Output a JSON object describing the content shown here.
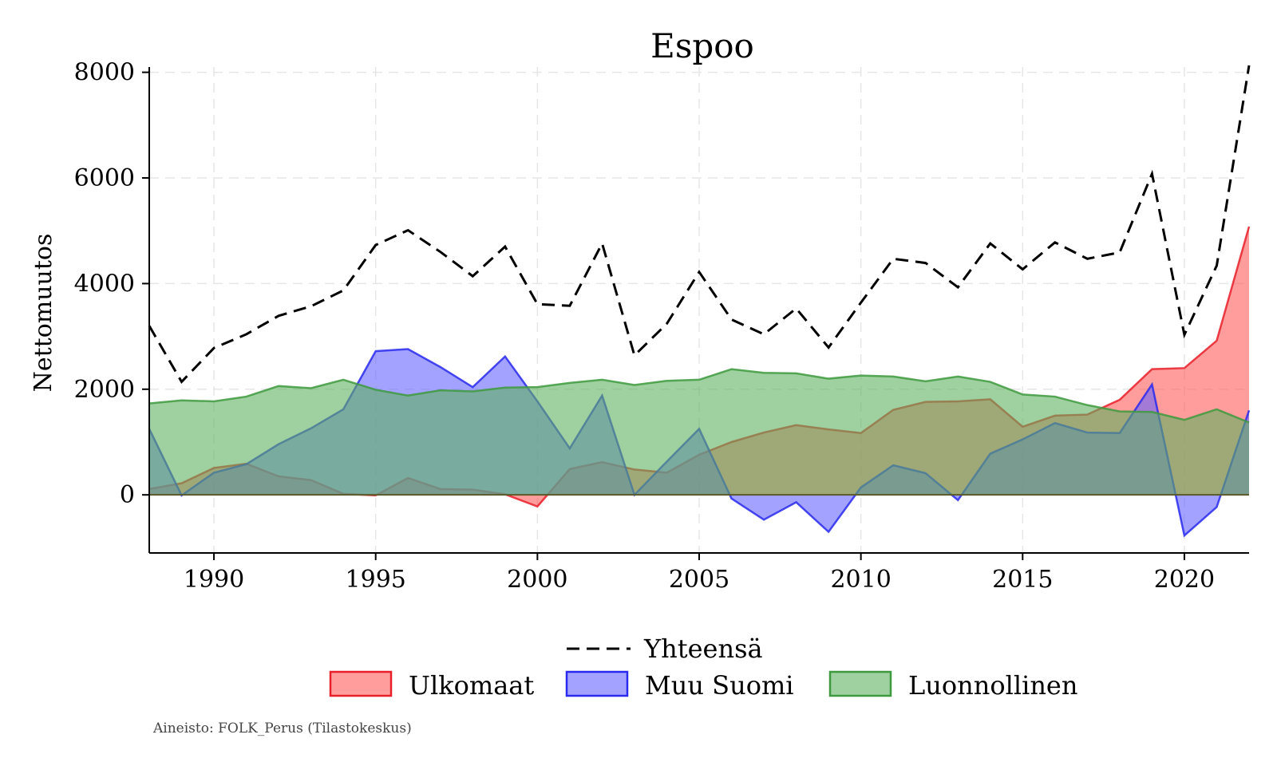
{
  "chart_data": {
    "type": "area",
    "title": "Espoo",
    "xlabel": "",
    "ylabel": "Nettomuutos",
    "xlim": [
      1988,
      2022
    ],
    "ylim": [
      -1100,
      8100
    ],
    "x_ticks": [
      1990,
      1995,
      2000,
      2005,
      2010,
      2015,
      2020
    ],
    "y_ticks": [
      0,
      2000,
      4000,
      6000,
      8000
    ],
    "x": [
      1988,
      1989,
      1990,
      1991,
      1992,
      1993,
      1994,
      1995,
      1996,
      1997,
      1998,
      1999,
      2000,
      2001,
      2002,
      2003,
      2004,
      2005,
      2006,
      2007,
      2008,
      2009,
      2010,
      2011,
      2012,
      2013,
      2014,
      2015,
      2016,
      2017,
      2018,
      2019,
      2020,
      2021,
      2022
    ],
    "series": [
      {
        "name": "Ulkomaat",
        "kind": "area",
        "color": "#ff5a5a",
        "edge": "#e8202a",
        "values": [
          110,
          220,
          510,
          590,
          350,
          280,
          20,
          -10,
          320,
          110,
          100,
          10,
          -220,
          490,
          620,
          480,
          420,
          760,
          1000,
          1180,
          1320,
          1240,
          1170,
          1610,
          1760,
          1770,
          1810,
          1290,
          1500,
          1520,
          1800,
          2380,
          2400,
          2920,
          5080
        ]
      },
      {
        "name": "Muu Suomi",
        "kind": "area",
        "color": "#6666ff",
        "edge": "#2a2aee",
        "values": [
          1250,
          -10,
          420,
          580,
          960,
          1260,
          1620,
          2720,
          2760,
          2420,
          2040,
          2620,
          1770,
          880,
          1880,
          0,
          630,
          1250,
          -70,
          -470,
          -140,
          -700,
          140,
          560,
          410,
          -100,
          780,
          1050,
          1360,
          1180,
          1170,
          2090,
          -770,
          -230,
          1600
        ]
      },
      {
        "name": "Luonnollinen",
        "kind": "area",
        "color": "#5fb05f",
        "edge": "#3e9a3e",
        "values": [
          1730,
          1790,
          1770,
          1860,
          2060,
          2020,
          2180,
          1990,
          1880,
          1980,
          1960,
          2030,
          2040,
          2120,
          2180,
          2080,
          2160,
          2180,
          2380,
          2310,
          2300,
          2200,
          2260,
          2240,
          2150,
          2240,
          2140,
          1900,
          1860,
          1700,
          1580,
          1570,
          1420,
          1620,
          1370
        ]
      },
      {
        "name": "Yhteensä",
        "kind": "line",
        "style": "dashed",
        "color": "#000000",
        "values": [
          3200,
          2140,
          2780,
          3040,
          3390,
          3570,
          3870,
          4730,
          5010,
          4600,
          4140,
          4700,
          3610,
          3580,
          4760,
          2640,
          3240,
          4220,
          3320,
          3040,
          3530,
          2790,
          3640,
          4470,
          4390,
          3930,
          4760,
          4270,
          4780,
          4470,
          4590,
          6080,
          3030,
          4340,
          8130
        ]
      }
    ],
    "legend": {
      "position": "bottom-center",
      "entries": [
        "Yhteensä",
        "Ulkomaat",
        "Muu Suomi",
        "Luonnollinen"
      ]
    },
    "source_note": "Aineisto: FOLK_Perus (Tilastokeskus)"
  }
}
